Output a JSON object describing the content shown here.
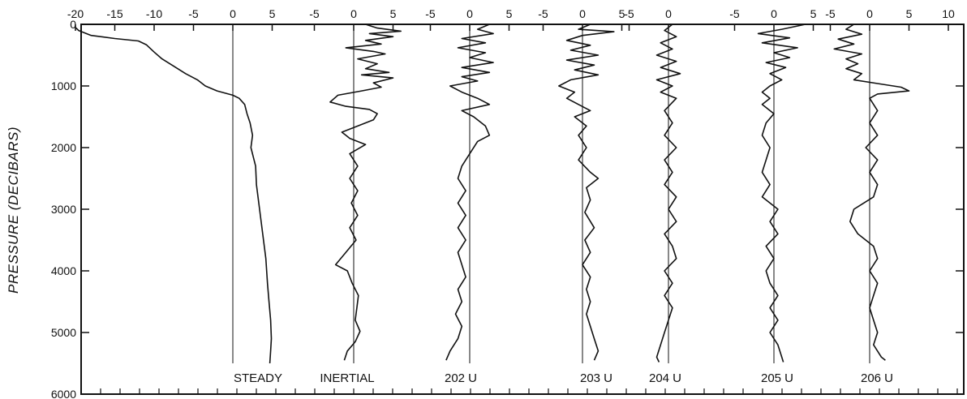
{
  "chart_data": {
    "type": "line",
    "title": "",
    "ylabel": "PRESSURE (DECIBARS)",
    "xlabel": "",
    "ylim": [
      0,
      6000
    ],
    "y_reversed": true,
    "y_ticks": [
      0,
      1000,
      2000,
      3000,
      4000,
      5000,
      6000
    ],
    "grid": false,
    "legend": "none",
    "panels": [
      {
        "name": "STEADY",
        "x_ticks": [
          -20,
          -15,
          -10,
          -5,
          0,
          5
        ],
        "zero_line": true,
        "points": [
          [
            -20,
            50
          ],
          [
            -19.6,
            100
          ],
          [
            -18,
            180
          ],
          [
            -15,
            230
          ],
          [
            -12,
            270
          ],
          [
            -11,
            330
          ],
          [
            -10,
            450
          ],
          [
            -9,
            560
          ],
          [
            -7.5,
            680
          ],
          [
            -6,
            800
          ],
          [
            -4.5,
            900
          ],
          [
            -3.5,
            1000
          ],
          [
            -2,
            1080
          ],
          [
            0,
            1150
          ],
          [
            0.8,
            1200
          ],
          [
            1.5,
            1300
          ],
          [
            1.8,
            1450
          ],
          [
            2.2,
            1600
          ],
          [
            2.5,
            1800
          ],
          [
            2.3,
            2000
          ],
          [
            2.9,
            2300
          ],
          [
            3,
            2600
          ],
          [
            3.3,
            2900
          ],
          [
            3.6,
            3200
          ],
          [
            3.9,
            3500
          ],
          [
            4.2,
            3800
          ],
          [
            4.4,
            4200
          ],
          [
            4.6,
            4500
          ],
          [
            4.8,
            4800
          ],
          [
            4.9,
            5100
          ],
          [
            4.8,
            5300
          ],
          [
            4.7,
            5500
          ]
        ]
      },
      {
        "name": "INERTIAL",
        "x_ticks": [
          -5,
          0,
          5
        ],
        "zero_line": true,
        "points": [
          [
            1.5,
            0
          ],
          [
            3,
            60
          ],
          [
            6,
            110
          ],
          [
            2,
            150
          ],
          [
            5,
            200
          ],
          [
            1.5,
            260
          ],
          [
            3.5,
            320
          ],
          [
            -1,
            380
          ],
          [
            2.5,
            440
          ],
          [
            4,
            480
          ],
          [
            0.5,
            560
          ],
          [
            3,
            640
          ],
          [
            1.5,
            720
          ],
          [
            4.5,
            780
          ],
          [
            1,
            820
          ],
          [
            5,
            870
          ],
          [
            2.5,
            950
          ],
          [
            3.5,
            1020
          ],
          [
            1,
            1080
          ],
          [
            -2,
            1150
          ],
          [
            -3,
            1260
          ],
          [
            -1,
            1330
          ],
          [
            2,
            1380
          ],
          [
            3,
            1450
          ],
          [
            2.5,
            1550
          ],
          [
            0.5,
            1650
          ],
          [
            -1.5,
            1750
          ],
          [
            -1,
            1800
          ],
          [
            -0.5,
            1850
          ],
          [
            1.5,
            1950
          ],
          [
            -0.5,
            2100
          ],
          [
            0.5,
            2300
          ],
          [
            -0.5,
            2500
          ],
          [
            0.5,
            2700
          ],
          [
            -0.3,
            2900
          ],
          [
            0.5,
            3100
          ],
          [
            -0.5,
            3300
          ],
          [
            0.3,
            3500
          ],
          [
            -1,
            3700
          ],
          [
            -2.3,
            3900
          ],
          [
            -0.8,
            4000
          ],
          [
            -0.2,
            4200
          ],
          [
            0.6,
            4400
          ],
          [
            0.4,
            4600
          ],
          [
            0.2,
            4800
          ],
          [
            0.8,
            4980
          ],
          [
            0.2,
            5150
          ],
          [
            -0.8,
            5300
          ],
          [
            -1.2,
            5450
          ]
        ]
      },
      {
        "name": "202 U",
        "x_ticks": [
          -5,
          0,
          5
        ],
        "zero_line": true,
        "points": [
          [
            2.5,
            0
          ],
          [
            1,
            80
          ],
          [
            3,
            150
          ],
          [
            -1,
            230
          ],
          [
            2,
            300
          ],
          [
            -1.5,
            380
          ],
          [
            2,
            460
          ],
          [
            0,
            540
          ],
          [
            3,
            620
          ],
          [
            -1,
            700
          ],
          [
            2.5,
            780
          ],
          [
            -1,
            850
          ],
          [
            1,
            920
          ],
          [
            -2.5,
            1000
          ],
          [
            -1,
            1100
          ],
          [
            1,
            1200
          ],
          [
            2.5,
            1300
          ],
          [
            -1,
            1400
          ],
          [
            0.5,
            1500
          ],
          [
            2,
            1650
          ],
          [
            2.5,
            1800
          ],
          [
            1,
            1900
          ],
          [
            0,
            2100
          ],
          [
            -1,
            2300
          ],
          [
            -1.5,
            2500
          ],
          [
            -0.5,
            2700
          ],
          [
            -1.5,
            2900
          ],
          [
            -0.5,
            3100
          ],
          [
            -1.5,
            3300
          ],
          [
            -0.5,
            3500
          ],
          [
            -1.5,
            3700
          ],
          [
            -1,
            3900
          ],
          [
            -0.5,
            4100
          ],
          [
            -1.5,
            4300
          ],
          [
            -1,
            4500
          ],
          [
            -1.8,
            4700
          ],
          [
            -1,
            4900
          ],
          [
            -1.5,
            5100
          ],
          [
            -2.5,
            5300
          ],
          [
            -3,
            5450
          ]
        ]
      },
      {
        "name": "203 U",
        "x_ticks": [
          -5,
          0,
          5
        ],
        "zero_line": true,
        "points": [
          [
            1,
            0
          ],
          [
            -0.5,
            80
          ],
          [
            4,
            120
          ],
          [
            0,
            180
          ],
          [
            -2,
            260
          ],
          [
            1,
            340
          ],
          [
            -1.5,
            420
          ],
          [
            2,
            500
          ],
          [
            -2,
            580
          ],
          [
            1.5,
            660
          ],
          [
            -1,
            740
          ],
          [
            2,
            820
          ],
          [
            -1.5,
            900
          ],
          [
            -3,
            1000
          ],
          [
            -1,
            1100
          ],
          [
            -2,
            1200
          ],
          [
            -0.5,
            1300
          ],
          [
            1,
            1400
          ],
          [
            -1,
            1500
          ],
          [
            0.5,
            1650
          ],
          [
            -0.5,
            1800
          ],
          [
            0.5,
            2000
          ],
          [
            -0.5,
            2200
          ],
          [
            1,
            2400
          ],
          [
            2,
            2500
          ],
          [
            0.5,
            2650
          ],
          [
            1,
            2850
          ],
          [
            0.3,
            3050
          ],
          [
            1.5,
            3300
          ],
          [
            0.3,
            3500
          ],
          [
            1,
            3700
          ],
          [
            0,
            3900
          ],
          [
            1,
            4100
          ],
          [
            0.5,
            4300
          ],
          [
            1,
            4500
          ],
          [
            0.5,
            4700
          ],
          [
            1,
            4900
          ],
          [
            1.5,
            5100
          ],
          [
            2,
            5300
          ],
          [
            1.5,
            5450
          ]
        ]
      },
      {
        "name": "204 U",
        "x_ticks": [
          -5,
          0
        ],
        "zero_line": true,
        "points": [
          [
            0.5,
            0
          ],
          [
            -0.5,
            100
          ],
          [
            1,
            200
          ],
          [
            -1,
            300
          ],
          [
            0.5,
            400
          ],
          [
            -1.5,
            500
          ],
          [
            1,
            600
          ],
          [
            -1,
            700
          ],
          [
            1.5,
            800
          ],
          [
            -1.5,
            900
          ],
          [
            0.5,
            1000
          ],
          [
            -1,
            1100
          ],
          [
            1,
            1200
          ],
          [
            -0.5,
            1400
          ],
          [
            0.5,
            1600
          ],
          [
            -0.5,
            1800
          ],
          [
            1,
            2000
          ],
          [
            -0.5,
            2200
          ],
          [
            0.5,
            2400
          ],
          [
            -0.5,
            2600
          ],
          [
            1,
            2800
          ],
          [
            0,
            3000
          ],
          [
            1,
            3200
          ],
          [
            -0.5,
            3400
          ],
          [
            0.5,
            3600
          ],
          [
            1,
            3800
          ],
          [
            -0.5,
            4000
          ],
          [
            0.5,
            4200
          ],
          [
            -0.5,
            4400
          ],
          [
            0.5,
            4600
          ],
          [
            0,
            4800
          ],
          [
            -0.5,
            5000
          ],
          [
            -1,
            5200
          ],
          [
            -1.5,
            5400
          ],
          [
            -1.2,
            5480
          ]
        ]
      },
      {
        "name": "205 U",
        "x_ticks": [
          -5,
          0,
          5
        ],
        "zero_line": true,
        "points": [
          [
            4,
            0
          ],
          [
            1,
            80
          ],
          [
            -2,
            150
          ],
          [
            2,
            220
          ],
          [
            -1.5,
            300
          ],
          [
            3,
            380
          ],
          [
            0,
            460
          ],
          [
            2,
            540
          ],
          [
            -1,
            620
          ],
          [
            1.5,
            700
          ],
          [
            -0.5,
            800
          ],
          [
            1,
            900
          ],
          [
            -0.5,
            1000
          ],
          [
            -1.5,
            1100
          ],
          [
            -0.5,
            1200
          ],
          [
            -1.5,
            1300
          ],
          [
            0,
            1450
          ],
          [
            -1,
            1600
          ],
          [
            -1.5,
            1800
          ],
          [
            -0.5,
            2000
          ],
          [
            -1,
            2200
          ],
          [
            -1.5,
            2400
          ],
          [
            -0.5,
            2600
          ],
          [
            -1.5,
            2800
          ],
          [
            0.5,
            3000
          ],
          [
            -0.5,
            3200
          ],
          [
            0.5,
            3400
          ],
          [
            -1,
            3600
          ],
          [
            0,
            3800
          ],
          [
            -1,
            4000
          ],
          [
            -0.5,
            4200
          ],
          [
            0.5,
            4400
          ],
          [
            -0.5,
            4600
          ],
          [
            0.5,
            4800
          ],
          [
            -0.5,
            5000
          ],
          [
            0.5,
            5200
          ],
          [
            1,
            5400
          ],
          [
            1.2,
            5480
          ]
        ]
      },
      {
        "name": "206 U",
        "x_ticks": [
          -5,
          0,
          5,
          10
        ],
        "zero_line": true,
        "points": [
          [
            -2,
            0
          ],
          [
            -3,
            80
          ],
          [
            -1,
            160
          ],
          [
            -4,
            240
          ],
          [
            -2,
            320
          ],
          [
            -4.5,
            400
          ],
          [
            -1,
            480
          ],
          [
            -3,
            560
          ],
          [
            -1.5,
            640
          ],
          [
            -3,
            720
          ],
          [
            -1,
            800
          ],
          [
            -2,
            900
          ],
          [
            1,
            960
          ],
          [
            4,
            1020
          ],
          [
            5,
            1080
          ],
          [
            1,
            1130
          ],
          [
            0,
            1200
          ],
          [
            1,
            1400
          ],
          [
            0,
            1600
          ],
          [
            1,
            1800
          ],
          [
            -0.5,
            2000
          ],
          [
            1,
            2200
          ],
          [
            0,
            2400
          ],
          [
            1,
            2600
          ],
          [
            0.5,
            2800
          ],
          [
            -2,
            3000
          ],
          [
            -2.5,
            3200
          ],
          [
            -1.5,
            3400
          ],
          [
            0.5,
            3600
          ],
          [
            1,
            3800
          ],
          [
            0,
            4000
          ],
          [
            1,
            4200
          ],
          [
            0.5,
            4400
          ],
          [
            0,
            4600
          ],
          [
            0.5,
            4800
          ],
          [
            1,
            5000
          ],
          [
            0.5,
            5200
          ],
          [
            1.5,
            5400
          ],
          [
            2,
            5450
          ]
        ]
      }
    ]
  }
}
